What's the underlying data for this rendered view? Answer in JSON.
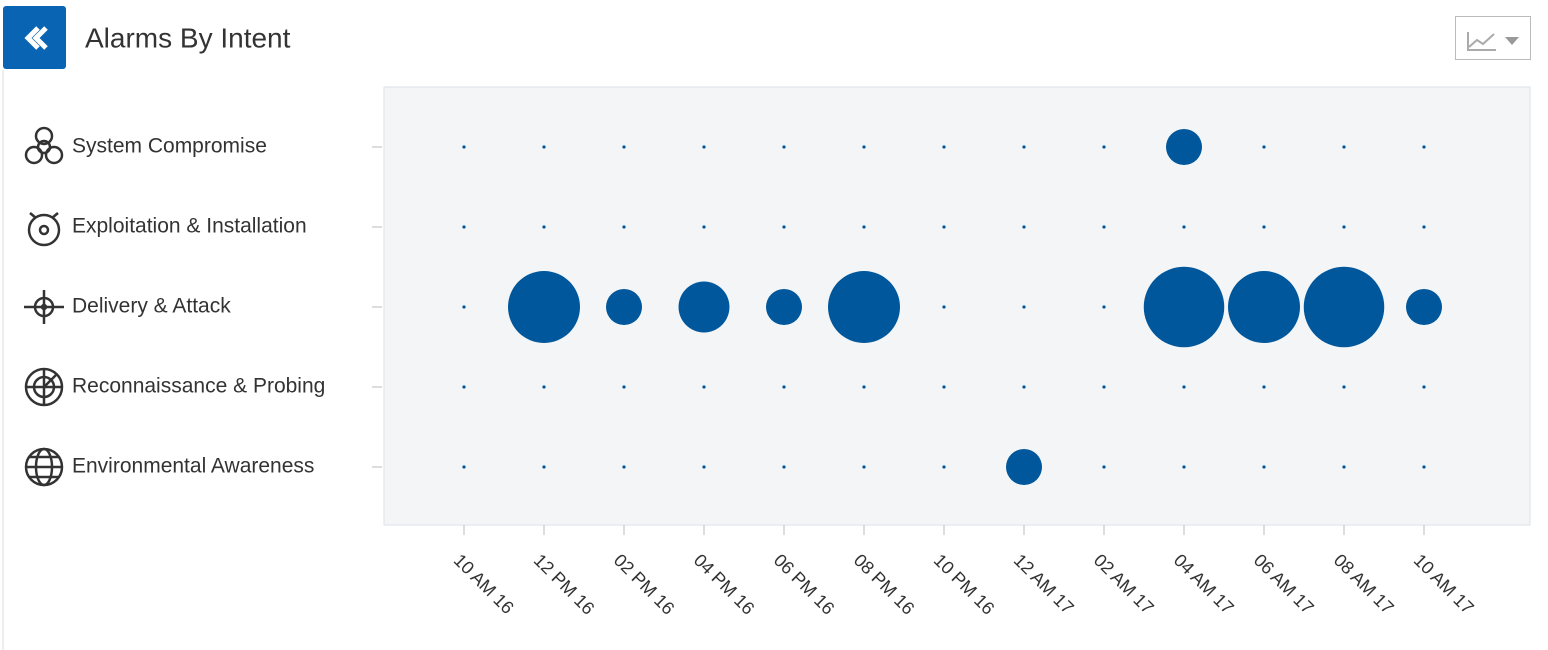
{
  "chart_data": {
    "type": "bubble",
    "title": "Alarms By Intent",
    "x": [
      "10 AM 16",
      "12 PM 16",
      "02 PM 16",
      "04 PM 16",
      "06 PM 16",
      "08 PM 16",
      "10 PM 16",
      "12 AM 17",
      "02 AM 17",
      "04 AM 17",
      "06 AM 17",
      "08 AM 17",
      "10 AM 17"
    ],
    "y": [
      "System Compromise",
      "Exploitation & Installation",
      "Delivery & Attack",
      "Reconnaissance & Probing",
      "Environmental Awareness"
    ],
    "values": [
      [
        0,
        0,
        0,
        0,
        0,
        0,
        0,
        0,
        0,
        1,
        0,
        0,
        0
      ],
      [
        0,
        0,
        0,
        0,
        0,
        0,
        0,
        0,
        0,
        0,
        0,
        0,
        0
      ],
      [
        0,
        4,
        1,
        2,
        1,
        4,
        0,
        0,
        0,
        5,
        4,
        5,
        1
      ],
      [
        0,
        0,
        0,
        0,
        0,
        0,
        0,
        0,
        0,
        0,
        0,
        0,
        0
      ],
      [
        0,
        0,
        0,
        0,
        0,
        0,
        0,
        1,
        0,
        0,
        0,
        0,
        0
      ]
    ],
    "color": "#00579b"
  }
}
